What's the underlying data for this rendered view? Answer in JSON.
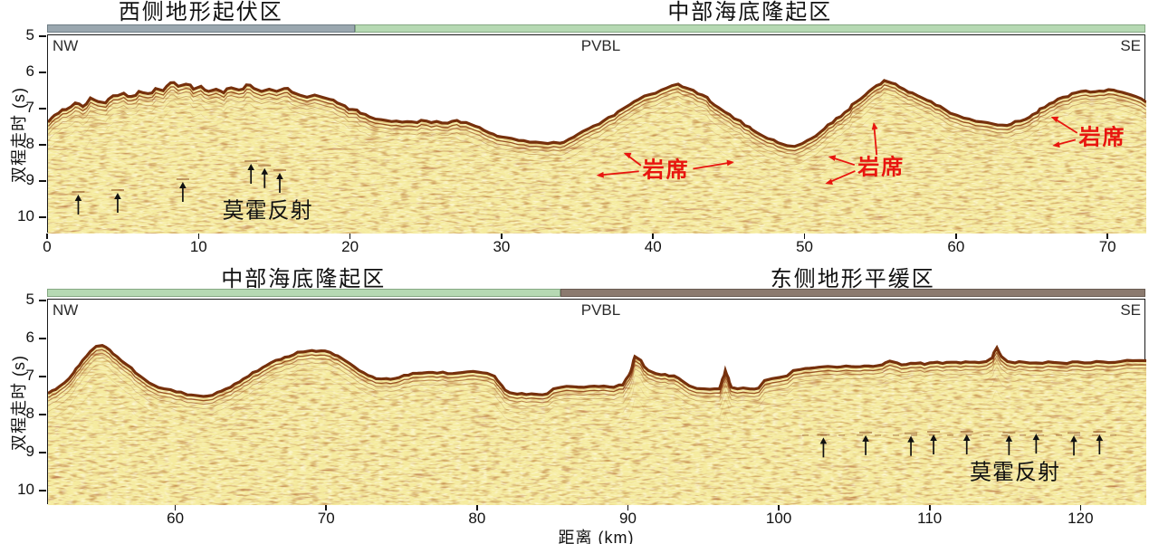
{
  "figure": {
    "colors": {
      "zone_gray": "#9aa7af",
      "zone_gray_edge": "#6f7e86",
      "zone_green": "#b6d9b3",
      "zone_green_edge": "#85a883",
      "zone_brown": "#8b7a6f",
      "zone_brown_edge": "#675a51",
      "annotation_red": "#e8150f",
      "seafloor_brown": "#76300c",
      "matrix_yellow": "#f5eb9f",
      "ink": "#111111"
    }
  },
  "chart_data": [
    {
      "type": "area",
      "corner_left": "NW",
      "corner_center": "PVBL",
      "corner_right": "SE",
      "xlabel": "距离 (km)",
      "ylabel": "双程走时 (s)",
      "xlim": [
        0,
        72.5
      ],
      "ylim": [
        5,
        10.45
      ],
      "x_ticks": [
        0,
        10,
        20,
        30,
        40,
        50,
        60,
        70
      ],
      "y_ticks": [
        5,
        6,
        7,
        8,
        9,
        10
      ],
      "zones": [
        {
          "label": "西侧地形起伏区",
          "start_km": 0,
          "end_km": 20.3,
          "color": "#9aa7af",
          "edge": "#6f7e86"
        },
        {
          "label": "中部海底隆起区",
          "start_km": 20.3,
          "end_km": 72.5,
          "color": "#b6d9b3",
          "edge": "#85a883"
        }
      ],
      "seafloor_twt": [
        [
          0,
          7.35
        ],
        [
          0.7,
          7.1
        ],
        [
          1.2,
          7.0
        ],
        [
          1.8,
          6.82
        ],
        [
          2.3,
          6.92
        ],
        [
          2.8,
          6.68
        ],
        [
          3.3,
          6.78
        ],
        [
          3.8,
          6.82
        ],
        [
          4.3,
          6.62
        ],
        [
          5,
          6.55
        ],
        [
          5.5,
          6.64
        ],
        [
          6,
          6.5
        ],
        [
          6.6,
          6.56
        ],
        [
          7.1,
          6.42
        ],
        [
          7.6,
          6.48
        ],
        [
          8.1,
          6.26
        ],
        [
          8.6,
          6.36
        ],
        [
          9.1,
          6.3
        ],
        [
          9.6,
          6.44
        ],
        [
          10.1,
          6.36
        ],
        [
          10.6,
          6.5
        ],
        [
          11.1,
          6.44
        ],
        [
          11.6,
          6.54
        ],
        [
          12.1,
          6.4
        ],
        [
          12.6,
          6.46
        ],
        [
          13.1,
          6.32
        ],
        [
          13.6,
          6.42
        ],
        [
          14.1,
          6.5
        ],
        [
          14.6,
          6.44
        ],
        [
          15.1,
          6.5
        ],
        [
          15.6,
          6.42
        ],
        [
          16.1,
          6.52
        ],
        [
          16.6,
          6.6
        ],
        [
          17.1,
          6.66
        ],
        [
          17.6,
          6.6
        ],
        [
          18.1,
          6.66
        ],
        [
          18.6,
          6.72
        ],
        [
          19.1,
          6.82
        ],
        [
          19.6,
          6.9
        ],
        [
          20.1,
          7.0
        ],
        [
          20.6,
          7.1
        ],
        [
          21.2,
          7.2
        ],
        [
          22,
          7.28
        ],
        [
          23,
          7.32
        ],
        [
          24,
          7.34
        ],
        [
          25,
          7.32
        ],
        [
          26,
          7.37
        ],
        [
          27,
          7.3
        ],
        [
          27.6,
          7.36
        ],
        [
          28.2,
          7.46
        ],
        [
          28.8,
          7.58
        ],
        [
          29.4,
          7.68
        ],
        [
          30,
          7.76
        ],
        [
          30.6,
          7.8
        ],
        [
          31.4,
          7.86
        ],
        [
          32.2,
          7.9
        ],
        [
          33,
          7.94
        ],
        [
          33.8,
          7.93
        ],
        [
          34.4,
          7.82
        ],
        [
          35,
          7.68
        ],
        [
          36,
          7.46
        ],
        [
          37,
          7.22
        ],
        [
          38,
          6.97
        ],
        [
          39,
          6.72
        ],
        [
          39.8,
          6.58
        ],
        [
          40.5,
          6.46
        ],
        [
          41.2,
          6.34
        ],
        [
          41.6,
          6.3
        ],
        [
          42.1,
          6.4
        ],
        [
          42.6,
          6.47
        ],
        [
          43.2,
          6.6
        ],
        [
          44,
          6.88
        ],
        [
          45,
          7.14
        ],
        [
          46,
          7.44
        ],
        [
          46.8,
          7.64
        ],
        [
          47.5,
          7.8
        ],
        [
          48.2,
          7.92
        ],
        [
          48.8,
          8.0
        ],
        [
          49.3,
          8.02
        ],
        [
          49.8,
          7.94
        ],
        [
          50.4,
          7.8
        ],
        [
          51,
          7.62
        ],
        [
          51.8,
          7.36
        ],
        [
          52.6,
          7.08
        ],
        [
          53.4,
          6.78
        ],
        [
          54.2,
          6.5
        ],
        [
          54.7,
          6.34
        ],
        [
          55.2,
          6.2
        ],
        [
          55.7,
          6.27
        ],
        [
          56.2,
          6.38
        ],
        [
          56.8,
          6.52
        ],
        [
          57.4,
          6.62
        ],
        [
          58,
          6.74
        ],
        [
          58.6,
          6.88
        ],
        [
          59.2,
          7.0
        ],
        [
          60,
          7.16
        ],
        [
          60.8,
          7.26
        ],
        [
          61.6,
          7.34
        ],
        [
          62.4,
          7.4
        ],
        [
          63,
          7.43
        ],
        [
          63.6,
          7.4
        ],
        [
          64.2,
          7.32
        ],
        [
          65,
          7.14
        ],
        [
          65.8,
          6.94
        ],
        [
          66.4,
          6.8
        ],
        [
          67,
          6.66
        ],
        [
          67.6,
          6.56
        ],
        [
          68.2,
          6.5
        ],
        [
          68.8,
          6.52
        ],
        [
          69.4,
          6.49
        ],
        [
          70,
          6.45
        ],
        [
          70.6,
          6.5
        ],
        [
          71.2,
          6.56
        ],
        [
          71.8,
          6.64
        ],
        [
          72.5,
          6.8
        ]
      ],
      "moho": {
        "label": "莫霍反射",
        "label_km": 14.5,
        "label_s": 9.8,
        "arrow_km_s": [
          [
            2.0,
            9.35
          ],
          [
            4.6,
            9.3
          ],
          [
            8.9,
            9.0
          ],
          [
            13.4,
            8.5
          ],
          [
            14.3,
            8.62
          ],
          [
            15.3,
            8.75
          ]
        ]
      },
      "sills": [
        {
          "label": "岩席",
          "label_km": 40.8,
          "label_s": 8.68,
          "targets_km_s": [
            [
              38.0,
              8.2
            ],
            [
              36.2,
              8.82
            ],
            [
              45.3,
              8.45
            ]
          ]
        },
        {
          "label": "岩席",
          "label_km": 55.0,
          "label_s": 8.6,
          "targets_km_s": [
            [
              54.5,
              7.35
            ],
            [
              51.5,
              8.3
            ],
            [
              51.3,
              9.05
            ]
          ]
        },
        {
          "label": "岩席",
          "label_km": 69.6,
          "label_s": 7.78,
          "targets_km_s": [
            [
              66.2,
              7.2
            ],
            [
              66.3,
              8.0
            ]
          ]
        }
      ]
    },
    {
      "type": "area",
      "corner_left": "NW",
      "corner_center": "PVBL",
      "corner_right": "SE",
      "xlabel": "距离 (km)",
      "ylabel": "双程走时 (s)",
      "xlim": [
        51.5,
        124.3
      ],
      "ylim": [
        5,
        10.36
      ],
      "x_ticks": [
        60,
        70,
        80,
        90,
        100,
        110,
        120
      ],
      "y_ticks": [
        5,
        6,
        7,
        8,
        9,
        10
      ],
      "zones": [
        {
          "label": "中部海底隆起区",
          "start_km": 51.5,
          "end_km": 85.5,
          "color": "#b6d9b3",
          "edge": "#85a883"
        },
        {
          "label": "东侧地形平缓区",
          "start_km": 85.5,
          "end_km": 124.3,
          "color": "#8b7a6f",
          "edge": "#675a51"
        }
      ],
      "seafloor_twt": [
        [
          51.5,
          7.42
        ],
        [
          52,
          7.32
        ],
        [
          52.6,
          7.14
        ],
        [
          53.2,
          6.88
        ],
        [
          53.8,
          6.55
        ],
        [
          54.3,
          6.32
        ],
        [
          54.7,
          6.18
        ],
        [
          55.1,
          6.16
        ],
        [
          55.6,
          6.28
        ],
        [
          56.1,
          6.46
        ],
        [
          56.7,
          6.66
        ],
        [
          57.3,
          6.88
        ],
        [
          57.9,
          7.05
        ],
        [
          58.5,
          7.2
        ],
        [
          59.2,
          7.3
        ],
        [
          60,
          7.38
        ],
        [
          61,
          7.46
        ],
        [
          61.8,
          7.5
        ],
        [
          62.4,
          7.47
        ],
        [
          63,
          7.36
        ],
        [
          63.6,
          7.26
        ],
        [
          64.2,
          7.12
        ],
        [
          64.8,
          6.97
        ],
        [
          65.4,
          6.83
        ],
        [
          66,
          6.68
        ],
        [
          66.6,
          6.55
        ],
        [
          67.2,
          6.47
        ],
        [
          67.8,
          6.4
        ],
        [
          68.4,
          6.33
        ],
        [
          69,
          6.29
        ],
        [
          69.6,
          6.3
        ],
        [
          70.2,
          6.34
        ],
        [
          70.7,
          6.43
        ],
        [
          71.2,
          6.56
        ],
        [
          71.8,
          6.72
        ],
        [
          72.4,
          6.87
        ],
        [
          73,
          6.98
        ],
        [
          73.6,
          7.04
        ],
        [
          74.2,
          7.05
        ],
        [
          74.8,
          7.0
        ],
        [
          75.4,
          6.94
        ],
        [
          76,
          6.89
        ],
        [
          77,
          6.87
        ],
        [
          78,
          6.9
        ],
        [
          79,
          6.87
        ],
        [
          80,
          6.86
        ],
        [
          80.6,
          6.89
        ],
        [
          81.1,
          6.97
        ],
        [
          81.6,
          7.22
        ],
        [
          82.1,
          7.4
        ],
        [
          82.6,
          7.44
        ],
        [
          83.2,
          7.45
        ],
        [
          84,
          7.45
        ],
        [
          84.6,
          7.43
        ],
        [
          85,
          7.3
        ],
        [
          85.5,
          7.26
        ],
        [
          86.2,
          7.24
        ],
        [
          87,
          7.26
        ],
        [
          88,
          7.24
        ],
        [
          89,
          7.26
        ],
        [
          89.6,
          7.2
        ],
        [
          90,
          6.95
        ],
        [
          90.4,
          6.45
        ],
        [
          90.8,
          6.55
        ],
        [
          91.3,
          6.82
        ],
        [
          91.8,
          6.9
        ],
        [
          92.4,
          6.92
        ],
        [
          93,
          6.96
        ],
        [
          93.5,
          7.08
        ],
        [
          94,
          7.22
        ],
        [
          94.5,
          7.29
        ],
        [
          95,
          7.3
        ],
        [
          96,
          7.3
        ],
        [
          96.2,
          7.05
        ],
        [
          96.4,
          6.82
        ],
        [
          96.6,
          7.02
        ],
        [
          96.8,
          7.26
        ],
        [
          97.2,
          7.3
        ],
        [
          98,
          7.3
        ],
        [
          98.6,
          7.28
        ],
        [
          99,
          7.08
        ],
        [
          99.5,
          7.03
        ],
        [
          100,
          7.0
        ],
        [
          100.5,
          6.96
        ],
        [
          100.9,
          6.82
        ],
        [
          101.4,
          6.79
        ],
        [
          102,
          6.76
        ],
        [
          102.6,
          6.73
        ],
        [
          103.2,
          6.71
        ],
        [
          103.8,
          6.73
        ],
        [
          104.4,
          6.7
        ],
        [
          105,
          6.72
        ],
        [
          105.6,
          6.7
        ],
        [
          106.2,
          6.71
        ],
        [
          106.8,
          6.67
        ],
        [
          107.3,
          6.57
        ],
        [
          107.8,
          6.62
        ],
        [
          108.4,
          6.66
        ],
        [
          109,
          6.63
        ],
        [
          109.6,
          6.66
        ],
        [
          110.2,
          6.61
        ],
        [
          110.8,
          6.63
        ],
        [
          111.4,
          6.6
        ],
        [
          112,
          6.62
        ],
        [
          112.6,
          6.6
        ],
        [
          113.2,
          6.61
        ],
        [
          113.7,
          6.58
        ],
        [
          114.1,
          6.48
        ],
        [
          114.4,
          6.22
        ],
        [
          114.7,
          6.45
        ],
        [
          115.1,
          6.58
        ],
        [
          115.6,
          6.62
        ],
        [
          116.2,
          6.6
        ],
        [
          117,
          6.62
        ],
        [
          117.8,
          6.59
        ],
        [
          118.6,
          6.62
        ],
        [
          119.4,
          6.59
        ],
        [
          120.2,
          6.62
        ],
        [
          121,
          6.58
        ],
        [
          121.8,
          6.61
        ],
        [
          122.6,
          6.58
        ],
        [
          123.4,
          6.56
        ],
        [
          124.3,
          6.56
        ]
      ],
      "moho": {
        "label": "莫霍反射",
        "label_km": 115.6,
        "label_s": 9.5,
        "arrow_km_s": [
          [
            102.9,
            8.58
          ],
          [
            105.7,
            8.52
          ],
          [
            108.7,
            8.54
          ],
          [
            110.2,
            8.5
          ],
          [
            112.4,
            8.5
          ],
          [
            115.2,
            8.52
          ],
          [
            117.0,
            8.48
          ],
          [
            119.5,
            8.53
          ],
          [
            121.2,
            8.5
          ]
        ],
        "line_km": [
          101.5,
          122.5
        ],
        "line_s": 8.52
      },
      "sills": []
    }
  ]
}
